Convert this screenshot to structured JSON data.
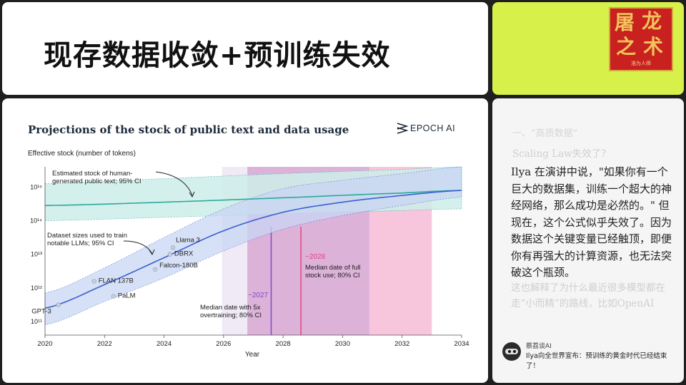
{
  "slide": {
    "title": "现存数据收敛+预训练失效",
    "logo": {
      "chars": [
        "屠",
        "龙",
        "之",
        "术"
      ],
      "subtitle": "浩为人师"
    }
  },
  "chart": {
    "title": "Projections of the stock of public text and data usage",
    "brand": "EPOCH AI",
    "ylabel": "Effective stock (number of tokens)",
    "xlabel": "Year",
    "x_ticks": [
      "2020",
      "2022",
      "2024",
      "2026",
      "2028",
      "2030",
      "2032",
      "2034"
    ],
    "y_ticks": [
      "10¹¹",
      "10¹²",
      "10¹³",
      "10¹⁴",
      "10¹⁵"
    ],
    "annotations": {
      "stock_line1": "Estimated stock of human-",
      "stock_line2": "generated public text; 95% CI",
      "dataset_line1": "Dataset sizes used to train",
      "dataset_line2": "notable LLMs; 95% CI",
      "overtrain_year": "~2027",
      "overtrain_line1": "Median date with 5x",
      "overtrain_line2": "overtraining; 80% CI",
      "full_year": "~2028",
      "full_line1": "Median date of full",
      "full_line2": "stock use; 80% CI"
    },
    "colors": {
      "stock_line": "#2aa89c",
      "stock_band": "#cdeee9",
      "dataset_line": "#3a5fd0",
      "dataset_band": "#c9d6f4",
      "overtrain_band": "#c9a2d6",
      "full_band": "#f4b3d2",
      "label_pink": "#e2447f",
      "label_purple": "#7a4dc9"
    }
  },
  "chart_data": {
    "type": "line",
    "x_range": [
      2020,
      2034
    ],
    "y_scale": "log",
    "y_range_exp": [
      10.6,
      15.6
    ],
    "series": [
      {
        "name": "Estimated stock of human-generated public text",
        "x": [
          2020,
          2024,
          2028,
          2032,
          2034
        ],
        "y_exp": [
          14.45,
          14.55,
          14.68,
          14.82,
          14.9
        ],
        "ci_low_exp": [
          14.0,
          14.1,
          14.2,
          14.3,
          14.35
        ],
        "ci_high_exp": [
          15.1,
          15.25,
          15.4,
          15.52,
          15.6
        ]
      },
      {
        "name": "Dataset sizes used to train notable LLMs",
        "x": [
          2020,
          2022,
          2024,
          2026,
          2028,
          2030,
          2032,
          2034
        ],
        "y_exp": [
          11.4,
          12.1,
          12.9,
          13.7,
          14.25,
          14.55,
          14.75,
          14.9
        ],
        "ci_low_exp": [
          10.9,
          11.6,
          12.3,
          13.1,
          13.75,
          14.15,
          14.45,
          14.7
        ],
        "ci_high_exp": [
          11.85,
          12.6,
          13.5,
          14.35,
          14.95,
          15.2,
          15.4,
          15.6
        ]
      }
    ],
    "points": [
      {
        "label": "GPT-3",
        "x": 2020.45,
        "y_exp": 11.5
      },
      {
        "label": "FLAN 137B",
        "x": 2021.65,
        "y_exp": 12.2
      },
      {
        "label": "PaLM",
        "x": 2022.3,
        "y_exp": 11.75
      },
      {
        "label": "Falcon-180B",
        "x": 2023.7,
        "y_exp": 12.55
      },
      {
        "label": "DBRX",
        "x": 2024.2,
        "y_exp": 13.0
      },
      {
        "label": "Llama 3",
        "x": 2024.3,
        "y_exp": 13.2
      }
    ],
    "intervals": [
      {
        "name": "Median date with 5x overtraining; 80% CI",
        "median": 2027.6,
        "low": 2026.8,
        "high": 2030.9
      },
      {
        "name": "Median date of full stock use; 80% CI",
        "median": 2028.6,
        "low": 2026.8,
        "high": 2033.0
      }
    ]
  },
  "article": {
    "faded_heading1": "一、“高质数据”",
    "faded_heading2": "Scaling Law失效了？",
    "body": "Ilya 在演讲中说，\"如果你有一个巨大的数据集，训练一个超大的神经网络，那么成功是必然的。\" 但现在，这个公式似乎失效了。因为数据这个关键变量已经触顶，即便你有再强大的计算资源，也无法突破这个瓶颈。",
    "faded_after": "这也解释了为什么最近很多模型都在走“小而精”的路线，比如OpenAI"
  },
  "comment": {
    "author": "蔡荔谈AI",
    "text": "Ilya向全世界宣布：预训练的黄金时代已经结束了！"
  }
}
